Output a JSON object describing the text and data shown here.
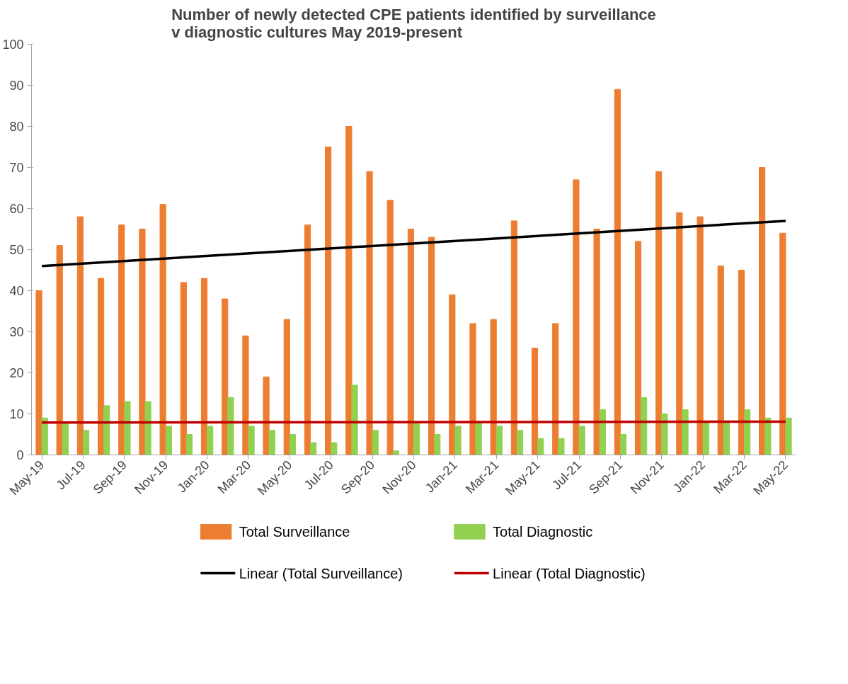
{
  "chart_data": {
    "type": "bar",
    "title": "Number of newly detected CPE patients identified by surveillance\nv diagnostic cultures May 2019-present",
    "categories": [
      "May-19",
      null,
      "Jul-19",
      null,
      "Sep-19",
      null,
      "Nov-19",
      null,
      "Jan-20",
      null,
      "Mar-20",
      null,
      "May-20",
      null,
      "Jul-20",
      null,
      "Sep-20",
      null,
      "Nov-20",
      null,
      "Jan-21",
      null,
      "Mar-21",
      null,
      "May-21",
      null,
      "Jul-21",
      null,
      "Sep-21",
      null,
      "Nov-21",
      null,
      "Jan-22",
      null,
      "Mar-22",
      null,
      "May-22"
    ],
    "series": [
      {
        "name": "Total Surveillance",
        "color": "#ed7d31",
        "values": [
          40,
          51,
          58,
          43,
          56,
          55,
          61,
          42,
          43,
          38,
          29,
          19,
          33,
          56,
          75,
          80,
          69,
          62,
          55,
          53,
          39,
          32,
          33,
          57,
          26,
          32,
          67,
          55,
          89,
          52,
          69,
          59,
          58,
          46,
          45,
          70,
          54
        ]
      },
      {
        "name": "Total Diagnostic",
        "color": "#92d050",
        "values": [
          9,
          8,
          6,
          12,
          13,
          13,
          7,
          5,
          7,
          14,
          7,
          6,
          5,
          3,
          3,
          17,
          6,
          1,
          8,
          5,
          7,
          8,
          7,
          6,
          4,
          4,
          7,
          11,
          5,
          14,
          10,
          11,
          8,
          8,
          11,
          9,
          9
        ]
      },
      {
        "name": "Linear (Total Surveillance)",
        "type": "line",
        "color": "#000000",
        "x": [
          "May-19",
          "May-22"
        ],
        "values": [
          46,
          57
        ]
      },
      {
        "name": "Linear (Total Diagnostic)",
        "type": "line",
        "color": "#c00000",
        "x": [
          "May-19",
          "May-22"
        ],
        "values": [
          7.9,
          8.1
        ]
      }
    ],
    "ylim": [
      0,
      100
    ],
    "yticks": [
      0,
      10,
      20,
      30,
      40,
      50,
      60,
      70,
      80,
      90,
      100
    ],
    "grid": false,
    "legend": "bottom"
  }
}
